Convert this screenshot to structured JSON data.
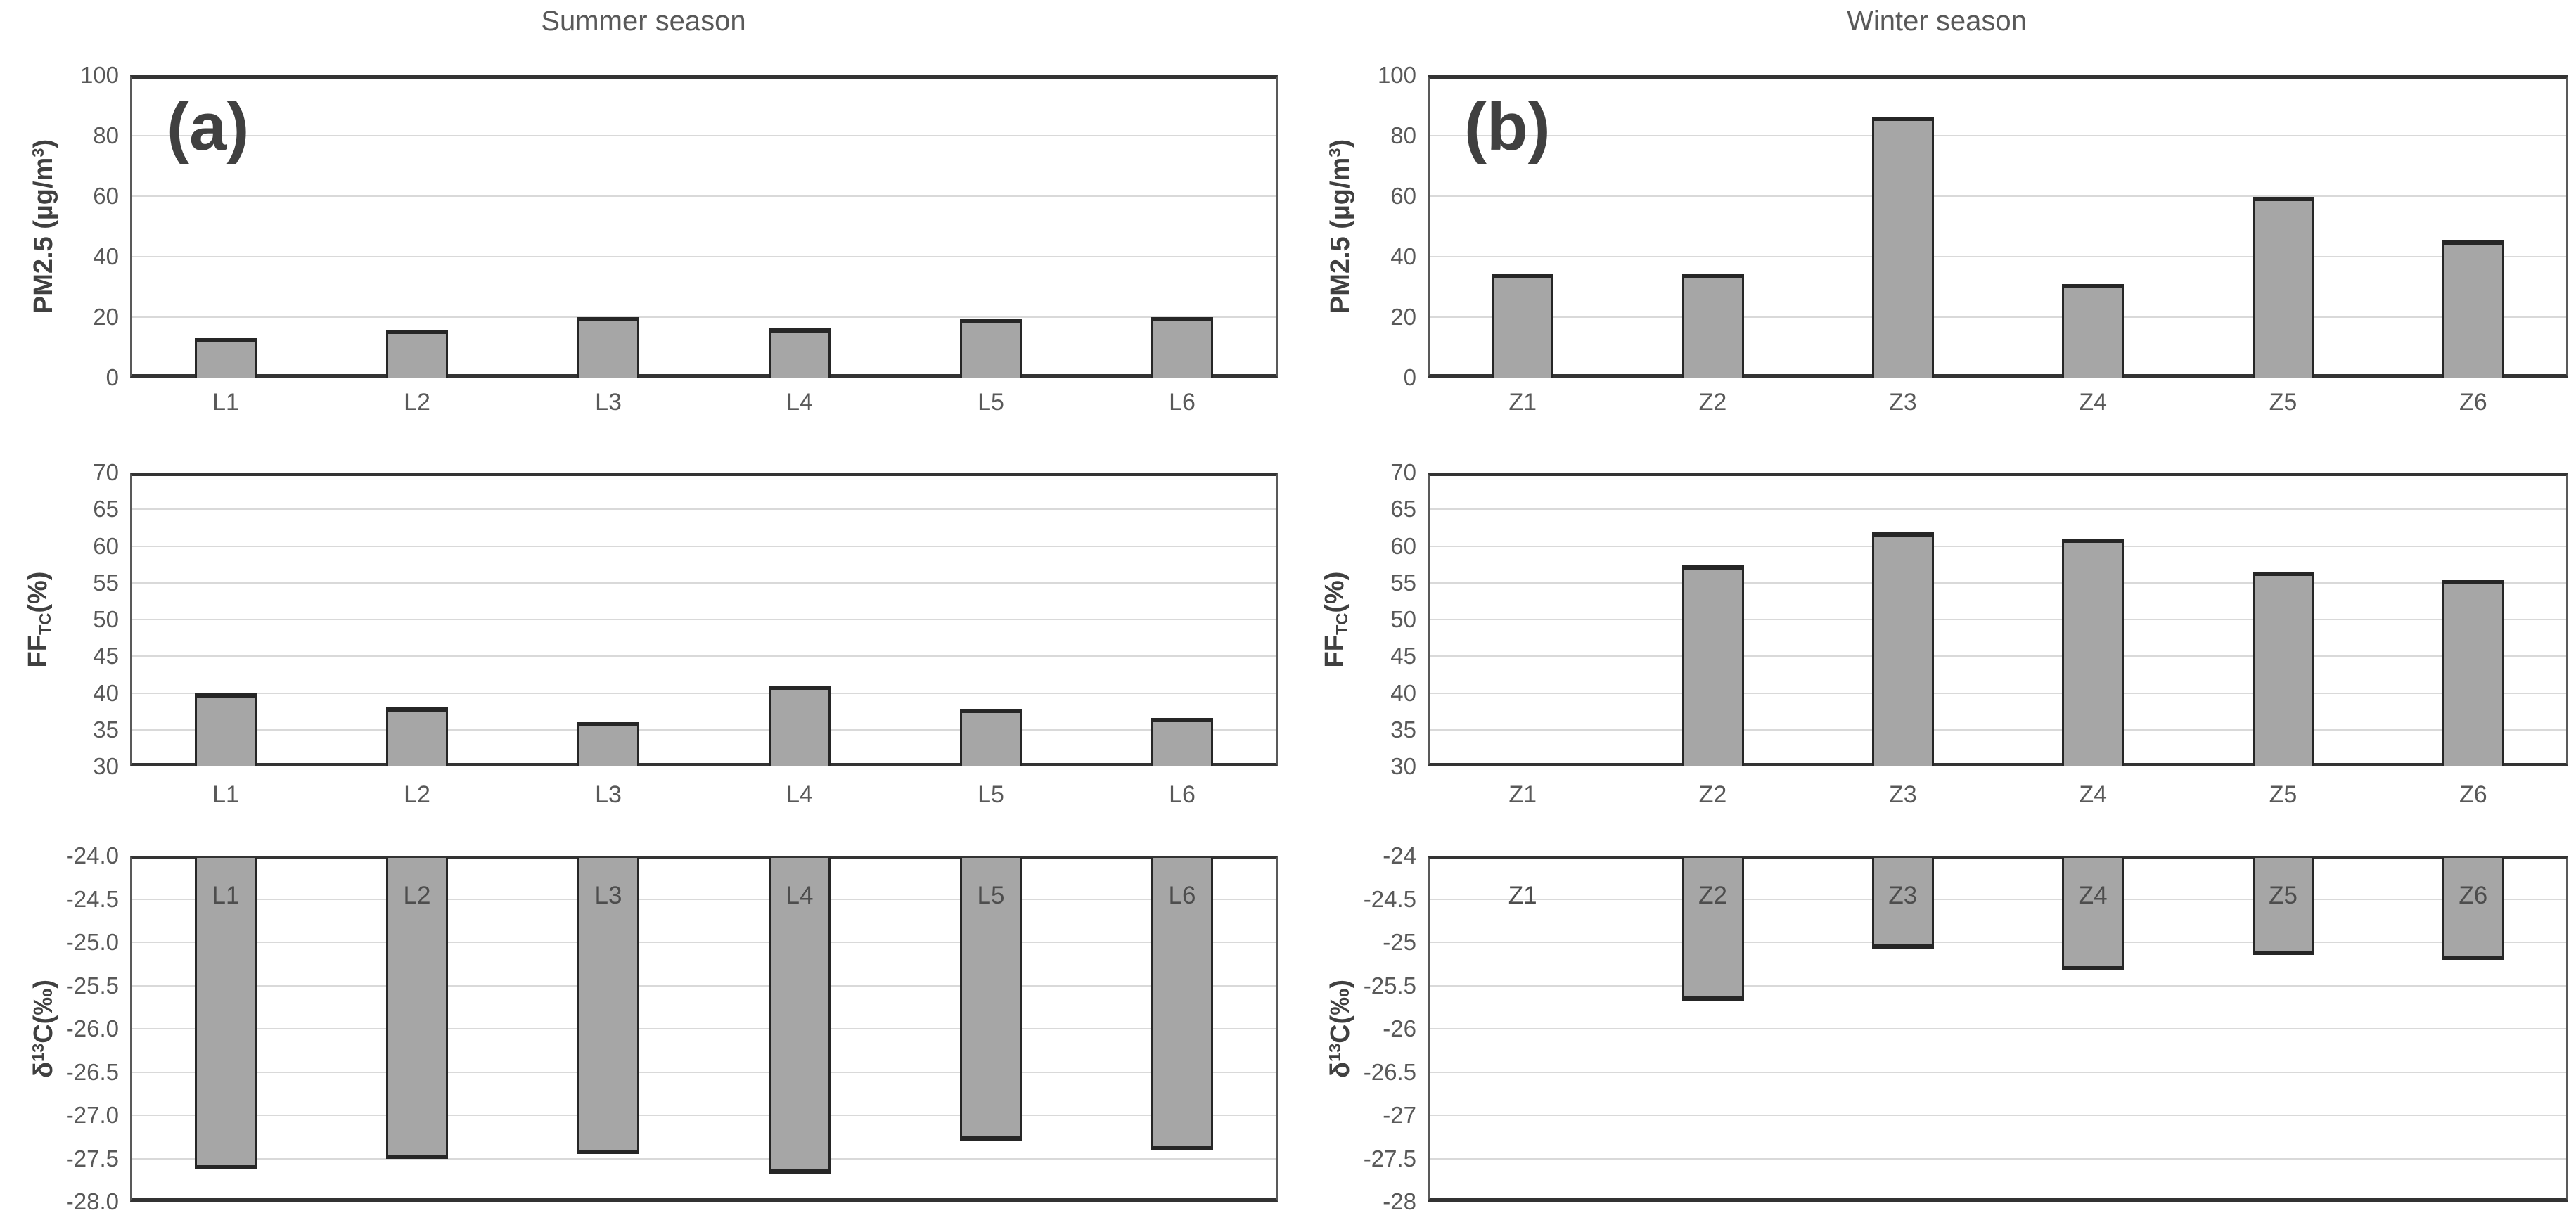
{
  "colors": {
    "background": "#ffffff",
    "bar_fill": "#a6a6a6",
    "bar_border": "#262626",
    "gridline": "#d9d9d9",
    "axis_line": "#333333",
    "plot_side_border": "#595959",
    "tick_text": "#595959",
    "title_text": "#595959",
    "panel_label_text": "#404040",
    "bar_label_text": "#4d4d4d"
  },
  "chart_data": [
    {
      "type": "bar",
      "panel": "a",
      "panel_label": "(a)",
      "row": 0,
      "col": 0,
      "title": "Summer season",
      "ylabel": "PM2.5 (µg/m³)",
      "ylabel_segments": [
        {
          "t": "PM2.5 (µg/m"
        },
        {
          "t": "3",
          "s": "sup"
        },
        {
          "t": ")"
        }
      ],
      "ylim": [
        0,
        100
      ],
      "ytick_step": 20,
      "ytick_labels": [
        "100",
        "80",
        "60",
        "40",
        "20",
        "0"
      ],
      "categories": [
        "L1",
        "L2",
        "L3",
        "L4",
        "L5",
        "L6"
      ],
      "values": [
        13,
        15.8,
        20,
        16.3,
        19.4,
        20
      ],
      "category_label_position": "below",
      "bars_hang_from_top": false,
      "grid": true
    },
    {
      "type": "bar",
      "panel": "b",
      "panel_label": "(b)",
      "row": 0,
      "col": 1,
      "title": "Winter season",
      "ylabel": "PM2.5 (µg/m³)",
      "ylabel_segments": [
        {
          "t": "PM2.5 (µg/m"
        },
        {
          "t": "3",
          "s": "sup"
        },
        {
          "t": ")"
        }
      ],
      "ylim": [
        0,
        100
      ],
      "ytick_step": 20,
      "ytick_labels": [
        "100",
        "80",
        "60",
        "40",
        "20",
        "0"
      ],
      "categories": [
        "Z1",
        "Z2",
        "Z3",
        "Z4",
        "Z5",
        "Z6"
      ],
      "values": [
        34.3,
        34.3,
        86.3,
        31,
        59.7,
        45.4
      ],
      "category_label_position": "below",
      "bars_hang_from_top": false,
      "grid": true
    },
    {
      "type": "bar",
      "panel": "a",
      "row": 1,
      "col": 0,
      "title": "",
      "ylabel": "FFTC(%)",
      "ylabel_segments": [
        {
          "t": "FF"
        },
        {
          "t": "TC",
          "s": "sub"
        },
        {
          "t": "(%)"
        }
      ],
      "ylim": [
        30,
        70
      ],
      "ytick_step": 5,
      "ytick_labels": [
        "70",
        "65",
        "60",
        "55",
        "50",
        "45",
        "40",
        "35",
        "30"
      ],
      "categories": [
        "L1",
        "L2",
        "L3",
        "L4",
        "L5",
        "L6"
      ],
      "values": [
        40,
        38,
        36,
        41,
        37.8,
        36.6
      ],
      "category_label_position": "below",
      "bars_hang_from_top": false,
      "grid": true
    },
    {
      "type": "bar",
      "panel": "b",
      "row": 1,
      "col": 1,
      "title": "",
      "ylabel": "FFTC(%)",
      "ylabel_segments": [
        {
          "t": "FF"
        },
        {
          "t": "TC",
          "s": "sub"
        },
        {
          "t": "(%)"
        }
      ],
      "ylim": [
        30,
        70
      ],
      "ytick_step": 5,
      "ytick_labels": [
        "70",
        "65",
        "60",
        "55",
        "50",
        "45",
        "40",
        "35",
        "30"
      ],
      "categories": [
        "Z1",
        "Z2",
        "Z3",
        "Z4",
        "Z5",
        "Z6"
      ],
      "values": [
        null,
        57.4,
        61.9,
        61,
        56.5,
        55.4
      ],
      "category_label_position": "below",
      "bars_hang_from_top": false,
      "grid": true
    },
    {
      "type": "bar",
      "panel": "a",
      "row": 2,
      "col": 0,
      "title": "",
      "ylabel": "δ¹³C(‰)",
      "ylabel_segments": [
        {
          "t": "δ"
        },
        {
          "t": "13",
          "s": "sup"
        },
        {
          "t": "C(‰)"
        }
      ],
      "ylim": [
        -28,
        -24
      ],
      "ytick_step": 0.5,
      "ytick_labels": [
        "-24.0",
        "-24.5",
        "-25.0",
        "-25.5",
        "-26.0",
        "-26.5",
        "-27.0",
        "-27.5",
        "-28.0"
      ],
      "categories": [
        "L1",
        "L2",
        "L3",
        "L4",
        "L5",
        "L6"
      ],
      "values": [
        -27.6,
        -27.48,
        -27.42,
        -27.65,
        -27.27,
        -27.37
      ],
      "category_label_position": "inside-top",
      "bars_hang_from_top": true,
      "grid": true
    },
    {
      "type": "bar",
      "panel": "b",
      "row": 2,
      "col": 1,
      "title": "",
      "ylabel": "δ¹³C(‰)",
      "ylabel_segments": [
        {
          "t": "δ"
        },
        {
          "t": "13",
          "s": "sup"
        },
        {
          "t": "C(‰)"
        }
      ],
      "ylim": [
        -28,
        -24
      ],
      "ytick_step": 0.5,
      "ytick_labels": [
        "-24",
        "-24.5",
        "-25",
        "-25.5",
        "-26",
        "-26.5",
        "-27",
        "-27.5",
        "-28"
      ],
      "categories": [
        "Z1",
        "Z2",
        "Z3",
        "Z4",
        "Z5",
        "Z6"
      ],
      "values": [
        null,
        -25.65,
        -25.05,
        -25.3,
        -25.12,
        -25.18
      ],
      "category_label_position": "inside-top",
      "bars_hang_from_top": true,
      "grid": true
    }
  ]
}
